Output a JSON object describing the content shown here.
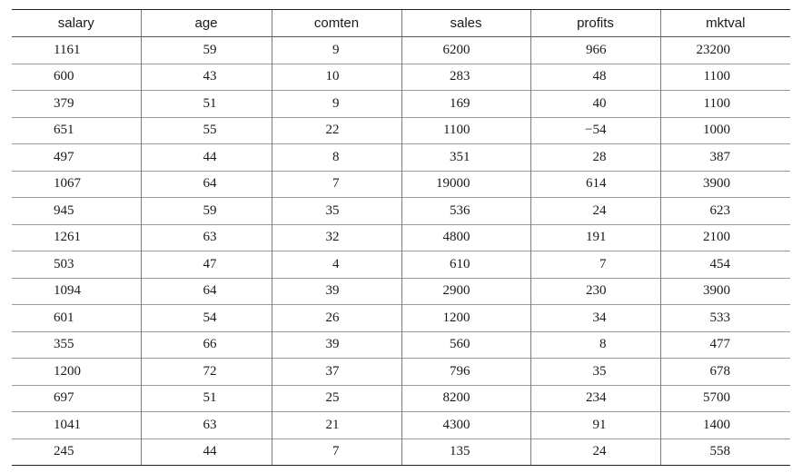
{
  "table": {
    "columns": [
      "salary",
      "age",
      "comten",
      "sales",
      "profits",
      "mktval"
    ],
    "rows": [
      [
        "1161",
        "59",
        "9",
        "6200",
        "966",
        "23200"
      ],
      [
        "600",
        "43",
        "10",
        "283",
        "48",
        "1100"
      ],
      [
        "379",
        "51",
        "9",
        "169",
        "40",
        "1100"
      ],
      [
        "651",
        "55",
        "22",
        "1100",
        "−54",
        "1000"
      ],
      [
        "497",
        "44",
        "8",
        "351",
        "28",
        "387"
      ],
      [
        "1067",
        "64",
        "7",
        "19000",
        "614",
        "3900"
      ],
      [
        "945",
        "59",
        "35",
        "536",
        "24",
        "623"
      ],
      [
        "1261",
        "63",
        "32",
        "4800",
        "191",
        "2100"
      ],
      [
        "503",
        "47",
        "4",
        "610",
        "7",
        "454"
      ],
      [
        "1094",
        "64",
        "39",
        "2900",
        "230",
        "3900"
      ],
      [
        "601",
        "54",
        "26",
        "1200",
        "34",
        "533"
      ],
      [
        "355",
        "66",
        "39",
        "560",
        "8",
        "477"
      ],
      [
        "1200",
        "72",
        "37",
        "796",
        "35",
        "678"
      ],
      [
        "697",
        "51",
        "25",
        "8200",
        "234",
        "5700"
      ],
      [
        "1041",
        "63",
        "21",
        "4300",
        "91",
        "1400"
      ],
      [
        "245",
        "44",
        "7",
        "135",
        "24",
        "558"
      ]
    ]
  }
}
